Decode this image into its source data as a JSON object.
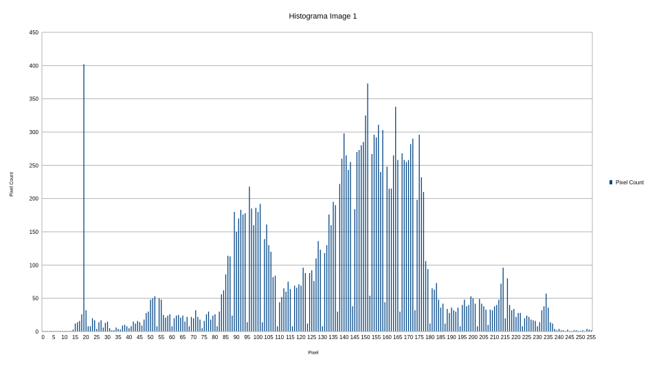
{
  "chart_data": {
    "type": "bar",
    "title": "Histograma Image 1",
    "xlabel": "Pixel",
    "ylabel": "Pixel Count",
    "ylim": [
      0,
      450
    ],
    "yticks": [
      0,
      50,
      100,
      150,
      200,
      250,
      300,
      350,
      400,
      450
    ],
    "xticks": [
      0,
      5,
      10,
      15,
      20,
      25,
      30,
      35,
      40,
      45,
      50,
      55,
      60,
      65,
      70,
      75,
      80,
      85,
      90,
      95,
      100,
      105,
      110,
      115,
      120,
      125,
      130,
      135,
      140,
      145,
      150,
      155,
      160,
      165,
      170,
      175,
      180,
      185,
      190,
      195,
      200,
      205,
      210,
      215,
      220,
      225,
      230,
      235,
      240,
      245,
      250,
      255
    ],
    "grid": true,
    "legend_position": "right",
    "bar_color": "#004586",
    "series": [
      {
        "name": "Pixel Count",
        "x_start": 0,
        "values": [
          1,
          1,
          1,
          1,
          1,
          1,
          1,
          1,
          1,
          1,
          1,
          1,
          1,
          1,
          3,
          12,
          14,
          16,
          26,
          402,
          32,
          8,
          8,
          20,
          17,
          4,
          14,
          17,
          6,
          13,
          15,
          5,
          2,
          2,
          6,
          4,
          3,
          9,
          10,
          8,
          5,
          8,
          15,
          12,
          16,
          14,
          9,
          18,
          28,
          30,
          48,
          50,
          53,
          8,
          50,
          48,
          25,
          21,
          24,
          26,
          8,
          20,
          24,
          25,
          21,
          24,
          15,
          22,
          8,
          22,
          20,
          32,
          22,
          18,
          5,
          16,
          26,
          30,
          18,
          24,
          26,
          8,
          30,
          56,
          62,
          86,
          114,
          113,
          24,
          180,
          150,
          170,
          183,
          176,
          178,
          14,
          218,
          185,
          160,
          186,
          180,
          192,
          14,
          139,
          161,
          130,
          120,
          82,
          84,
          8,
          44,
          52,
          65,
          60,
          75,
          64,
          8,
          69,
          66,
          71,
          69,
          96,
          88,
          12,
          88,
          92,
          76,
          110,
          136,
          123,
          8,
          118,
          130,
          176,
          160,
          195,
          190,
          30,
          222,
          260,
          298,
          265,
          243,
          255,
          38,
          184,
          270,
          273,
          280,
          285,
          325,
          373,
          54,
          267,
          296,
          292,
          311,
          240,
          303,
          44,
          248,
          215,
          215,
          265,
          338,
          258,
          30,
          268,
          258,
          255,
          258,
          282,
          290,
          32,
          198,
          296,
          232,
          210,
          106,
          94,
          12,
          65,
          63,
          73,
          48,
          36,
          42,
          12,
          34,
          28,
          36,
          32,
          30,
          36,
          8,
          40,
          48,
          38,
          40,
          53,
          50,
          42,
          8,
          49,
          42,
          38,
          33,
          10,
          33,
          32,
          38,
          40,
          48,
          72,
          96,
          20,
          80,
          40,
          32,
          34,
          22,
          28,
          28,
          8,
          20,
          24,
          22,
          18,
          17,
          16,
          8,
          14,
          32,
          38,
          57,
          36,
          14,
          12,
          4,
          2,
          4,
          2,
          2,
          1,
          3,
          1,
          1,
          2,
          2,
          1,
          1,
          2,
          1,
          4,
          3,
          2
        ]
      }
    ]
  }
}
